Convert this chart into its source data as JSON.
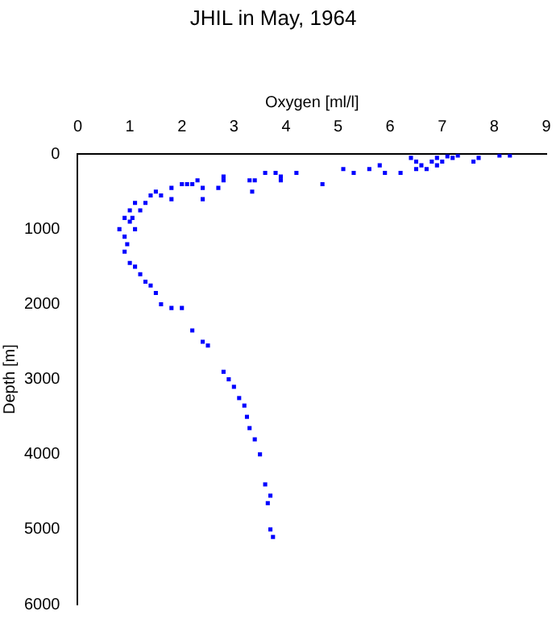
{
  "chart_data": {
    "type": "scatter",
    "title": "JHIL in May, 1964",
    "xlabel": "Oxygen [ml/l]",
    "ylabel": "Depth [m]",
    "xlim": [
      0,
      9
    ],
    "xticks": [
      0,
      1,
      2,
      3,
      4,
      5,
      6,
      7,
      8,
      9
    ],
    "ylim": [
      6000,
      0
    ],
    "yticks": [
      0,
      1000,
      2000,
      3000,
      4000,
      5000,
      6000
    ],
    "grid": false,
    "legend": false,
    "marker": "square",
    "series": [
      {
        "color": "#0000ff",
        "x": [
          8.3,
          8.1,
          7.7,
          7.6,
          7.3,
          7.2,
          7.1,
          7.0,
          6.9,
          6.8,
          6.7,
          6.6,
          6.5,
          6.5,
          6.4,
          6.9,
          6.2,
          5.9,
          5.8,
          5.6,
          5.3,
          5.1,
          4.7,
          4.2,
          3.9,
          3.8,
          3.9,
          3.6,
          3.4,
          3.3,
          3.35,
          2.8,
          2.8,
          2.7,
          2.4,
          2.4,
          2.2,
          2.3,
          2.1,
          2.0,
          1.8,
          1.8,
          1.6,
          1.5,
          1.4,
          1.3,
          1.2,
          1.1,
          1.0,
          1.05,
          0.9,
          1.0,
          0.8,
          0.9,
          1.1,
          0.95,
          0.9,
          1.0,
          1.1,
          1.2,
          1.3,
          1.4,
          1.5,
          1.6,
          1.8,
          2.0,
          2.2,
          2.4,
          2.5,
          2.8,
          2.9,
          3.0,
          3.1,
          3.2,
          3.25,
          3.3,
          3.4,
          3.5,
          3.6,
          3.7,
          3.65,
          3.7,
          3.75
        ],
        "values": [
          20,
          20,
          50,
          100,
          20,
          50,
          30,
          100,
          150,
          100,
          200,
          150,
          100,
          200,
          50,
          50,
          250,
          250,
          150,
          200,
          250,
          200,
          400,
          250,
          300,
          250,
          350,
          250,
          350,
          350,
          500,
          350,
          300,
          450,
          600,
          450,
          400,
          350,
          400,
          400,
          450,
          600,
          550,
          500,
          550,
          650,
          750,
          650,
          750,
          850,
          850,
          900,
          1000,
          1100,
          1000,
          1200,
          1300,
          1450,
          1500,
          1600,
          1700,
          1750,
          1850,
          2000,
          2050,
          2050,
          2350,
          2500,
          2550,
          2900,
          3000,
          3100,
          3250,
          3350,
          3500,
          3650,
          3800,
          4000,
          4400,
          4550,
          4650,
          5000,
          5100
        ]
      }
    ]
  }
}
